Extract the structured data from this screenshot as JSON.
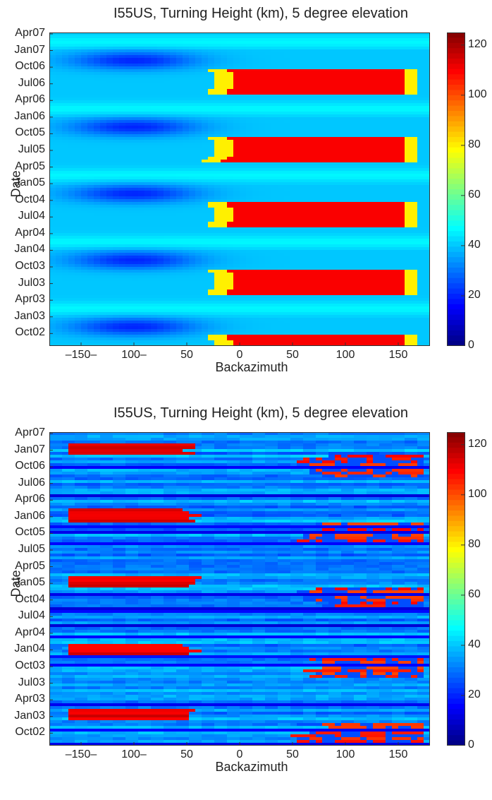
{
  "chart_data": [
    {
      "type": "heatmap",
      "title": "I55US, Turning Height (km), 5 degree elevation",
      "xlabel": "Backazimuth",
      "ylabel": "Date",
      "xlim": [
        -180,
        180
      ],
      "ylim": [
        "Aug02",
        "Apr07"
      ],
      "x_ticks": [
        -150,
        -100,
        -50,
        0,
        50,
        100,
        150
      ],
      "x_tick_labels": [
        "–150–",
        "100–",
        "50",
        "0",
        "50",
        "100",
        "150"
      ],
      "y_tick_labels": [
        "Apr07",
        "Jan07",
        "Oct06",
        "Jul06",
        "Apr06",
        "Jan06",
        "Oct05",
        "Jul05",
        "Apr05",
        "Jan05",
        "Oct04",
        "Jul04",
        "Apr04",
        "Jan04",
        "Oct03",
        "Jul03",
        "Apr03",
        "Jan03",
        "Oct02"
      ],
      "colorbar": {
        "min": 0,
        "max": 125,
        "ticks": [
          0,
          20,
          40,
          60,
          80,
          100,
          120
        ],
        "colormap": "jet"
      },
      "description_of_pattern": {
        "summer_high_band": {
          "backazimuth_range": [
            0,
            150
          ],
          "value_km": 110,
          "months": [
            "Apr",
            "May",
            "Jun",
            "Jul",
            "Aug",
            "Sep",
            "Oct"
          ]
        },
        "winter_low_band": {
          "backazimuth_range": [
            -150,
            -50
          ],
          "value_km": 20,
          "months": [
            "Sep",
            "Oct",
            "Nov"
          ]
        },
        "background_km": 38
      }
    },
    {
      "type": "heatmap",
      "title": "I55US, Turning Height (km), 5 degree elevation",
      "xlabel": "Backazimuth",
      "ylabel": "Date",
      "xlim": [
        -180,
        180
      ],
      "ylim": [
        "Aug02",
        "Apr07"
      ],
      "x_ticks": [
        -150,
        -100,
        -50,
        0,
        50,
        100,
        150
      ],
      "x_tick_labels": [
        "–150–",
        "100–",
        "50",
        "0",
        "50",
        "100",
        "150"
      ],
      "y_tick_labels": [
        "Apr07",
        "Jan07",
        "Oct06",
        "Jul06",
        "Apr06",
        "Jan06",
        "Oct05",
        "Jul05",
        "Apr05",
        "Jan05",
        "Oct04",
        "Jul04",
        "Apr04",
        "Jan04",
        "Oct03",
        "Jul03",
        "Apr03",
        "Jan03",
        "Oct02"
      ],
      "colorbar": {
        "min": 0,
        "max": 125,
        "ticks": [
          0,
          20,
          40,
          60,
          80,
          100,
          120
        ],
        "colormap": "jet"
      },
      "description_of_pattern": {
        "winter_high_band": {
          "backazimuth_range": [
            -170,
            -60
          ],
          "value_km": 110,
          "months": [
            "Dec",
            "Jan",
            "Feb"
          ]
        },
        "summer_high_band": {
          "backazimuth_range": [
            50,
            170
          ],
          "value_km": 95,
          "months": [
            "Aug",
            "Sep",
            "Oct",
            "Nov"
          ]
        },
        "background_km": 30
      }
    }
  ]
}
